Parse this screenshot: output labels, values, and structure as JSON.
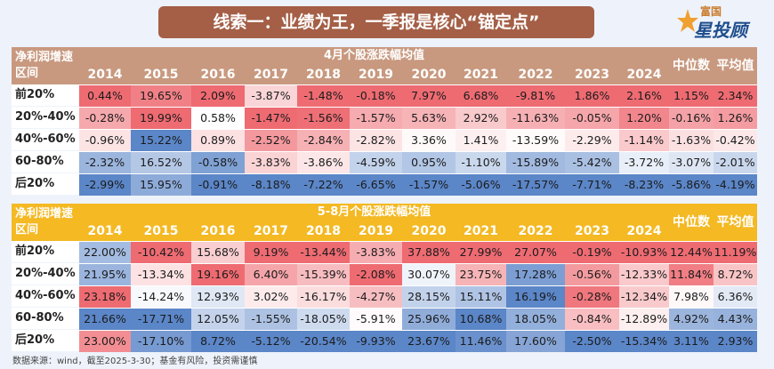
{
  "title": "线索一：业绩为王，一季报是核心“锚定点”",
  "logo": {
    "line1": "富国",
    "line2": "星投顾"
  },
  "source": "数据来源：wind，截至2025-3-30；基金有风险，投资需谨慎",
  "colors": {
    "table1_header": "#c8997f",
    "table2_header": "#f4b923",
    "red_strong": "#ee6b72",
    "blue_strong": "#5b86c8",
    "white": "#ffffff"
  },
  "chart_data": [
    {
      "type": "table",
      "title": "4月个股涨跌幅均值",
      "corner_label": "净利润增速区间",
      "columns": [
        "2014",
        "2015",
        "2016",
        "2017",
        "2018",
        "2019",
        "2020",
        "2021",
        "2022",
        "2023",
        "2024",
        "中位数",
        "平均值"
      ],
      "rows": [
        {
          "label": "前20%",
          "values": [
            "0.44%",
            "19.65%",
            "2.09%",
            "-3.87%",
            "-1.48%",
            "-0.18%",
            "7.97%",
            "6.68%",
            "-9.81%",
            "1.86%",
            "2.16%",
            "1.15%",
            "2.34%"
          ]
        },
        {
          "label": "20%-40%",
          "values": [
            "-0.28%",
            "19.99%",
            "0.58%",
            "-1.47%",
            "-1.56%",
            "-1.57%",
            "5.63%",
            "2.92%",
            "-11.63%",
            "-0.05%",
            "1.20%",
            "-0.16%",
            "1.26%"
          ]
        },
        {
          "label": "40%-60%",
          "values": [
            "-0.96%",
            "15.22%",
            "0.89%",
            "-2.52%",
            "-2.84%",
            "-2.82%",
            "3.36%",
            "1.41%",
            "-13.59%",
            "-2.29%",
            "-1.14%",
            "-1.63%",
            "-0.42%"
          ]
        },
        {
          "label": "60-80%",
          "values": [
            "-2.32%",
            "16.52%",
            "-0.58%",
            "-3.83%",
            "-3.86%",
            "-4.59%",
            "0.95%",
            "-1.10%",
            "-15.89%",
            "-5.42%",
            "-3.72%",
            "-3.07%",
            "-2.01%"
          ]
        },
        {
          "label": "后20%",
          "values": [
            "-2.99%",
            "15.95%",
            "-0.91%",
            "-8.18%",
            "-7.22%",
            "-6.65%",
            "-1.57%",
            "-5.06%",
            "-17.57%",
            "-7.71%",
            "-8.23%",
            "-5.86%",
            "-4.19%"
          ]
        }
      ]
    },
    {
      "type": "table",
      "title": "5-8月个股涨跌幅均值",
      "corner_label": "净利润增速区间",
      "columns": [
        "2014",
        "2015",
        "2016",
        "2017",
        "2018",
        "2019",
        "2020",
        "2021",
        "2022",
        "2023",
        "2024",
        "中位数",
        "平均值"
      ],
      "rows": [
        {
          "label": "前20%",
          "values": [
            "22.00%",
            "-10.42%",
            "15.68%",
            "9.19%",
            "-13.44%",
            "-3.83%",
            "37.88%",
            "27.99%",
            "27.07%",
            "-0.19%",
            "-10.93%",
            "12.44%",
            "11.19%"
          ]
        },
        {
          "label": "20%-40%",
          "values": [
            "21.95%",
            "-13.34%",
            "19.16%",
            "6.40%",
            "-15.39%",
            "-2.08%",
            "30.07%",
            "23.75%",
            "17.28%",
            "-0.56%",
            "-12.33%",
            "11.84%",
            "8.72%"
          ]
        },
        {
          "label": "40%-60%",
          "values": [
            "23.18%",
            "-14.24%",
            "12.93%",
            "3.02%",
            "-16.17%",
            "-4.27%",
            "28.15%",
            "15.11%",
            "16.19%",
            "-0.28%",
            "-12.34%",
            "7.98%",
            "6.36%"
          ]
        },
        {
          "label": "60-80%",
          "values": [
            "21.66%",
            "-17.71%",
            "12.05%",
            "-1.55%",
            "-18.05%",
            "-5.91%",
            "25.96%",
            "10.68%",
            "18.05%",
            "-0.84%",
            "-12.89%",
            "4.92%",
            "4.43%"
          ]
        },
        {
          "label": "后20%",
          "values": [
            "23.00%",
            "-17.10%",
            "8.72%",
            "-5.12%",
            "-20.54%",
            "-9.93%",
            "23.67%",
            "11.46%",
            "17.60%",
            "-2.50%",
            "-15.34%",
            "3.11%",
            "2.93%"
          ]
        }
      ]
    }
  ]
}
